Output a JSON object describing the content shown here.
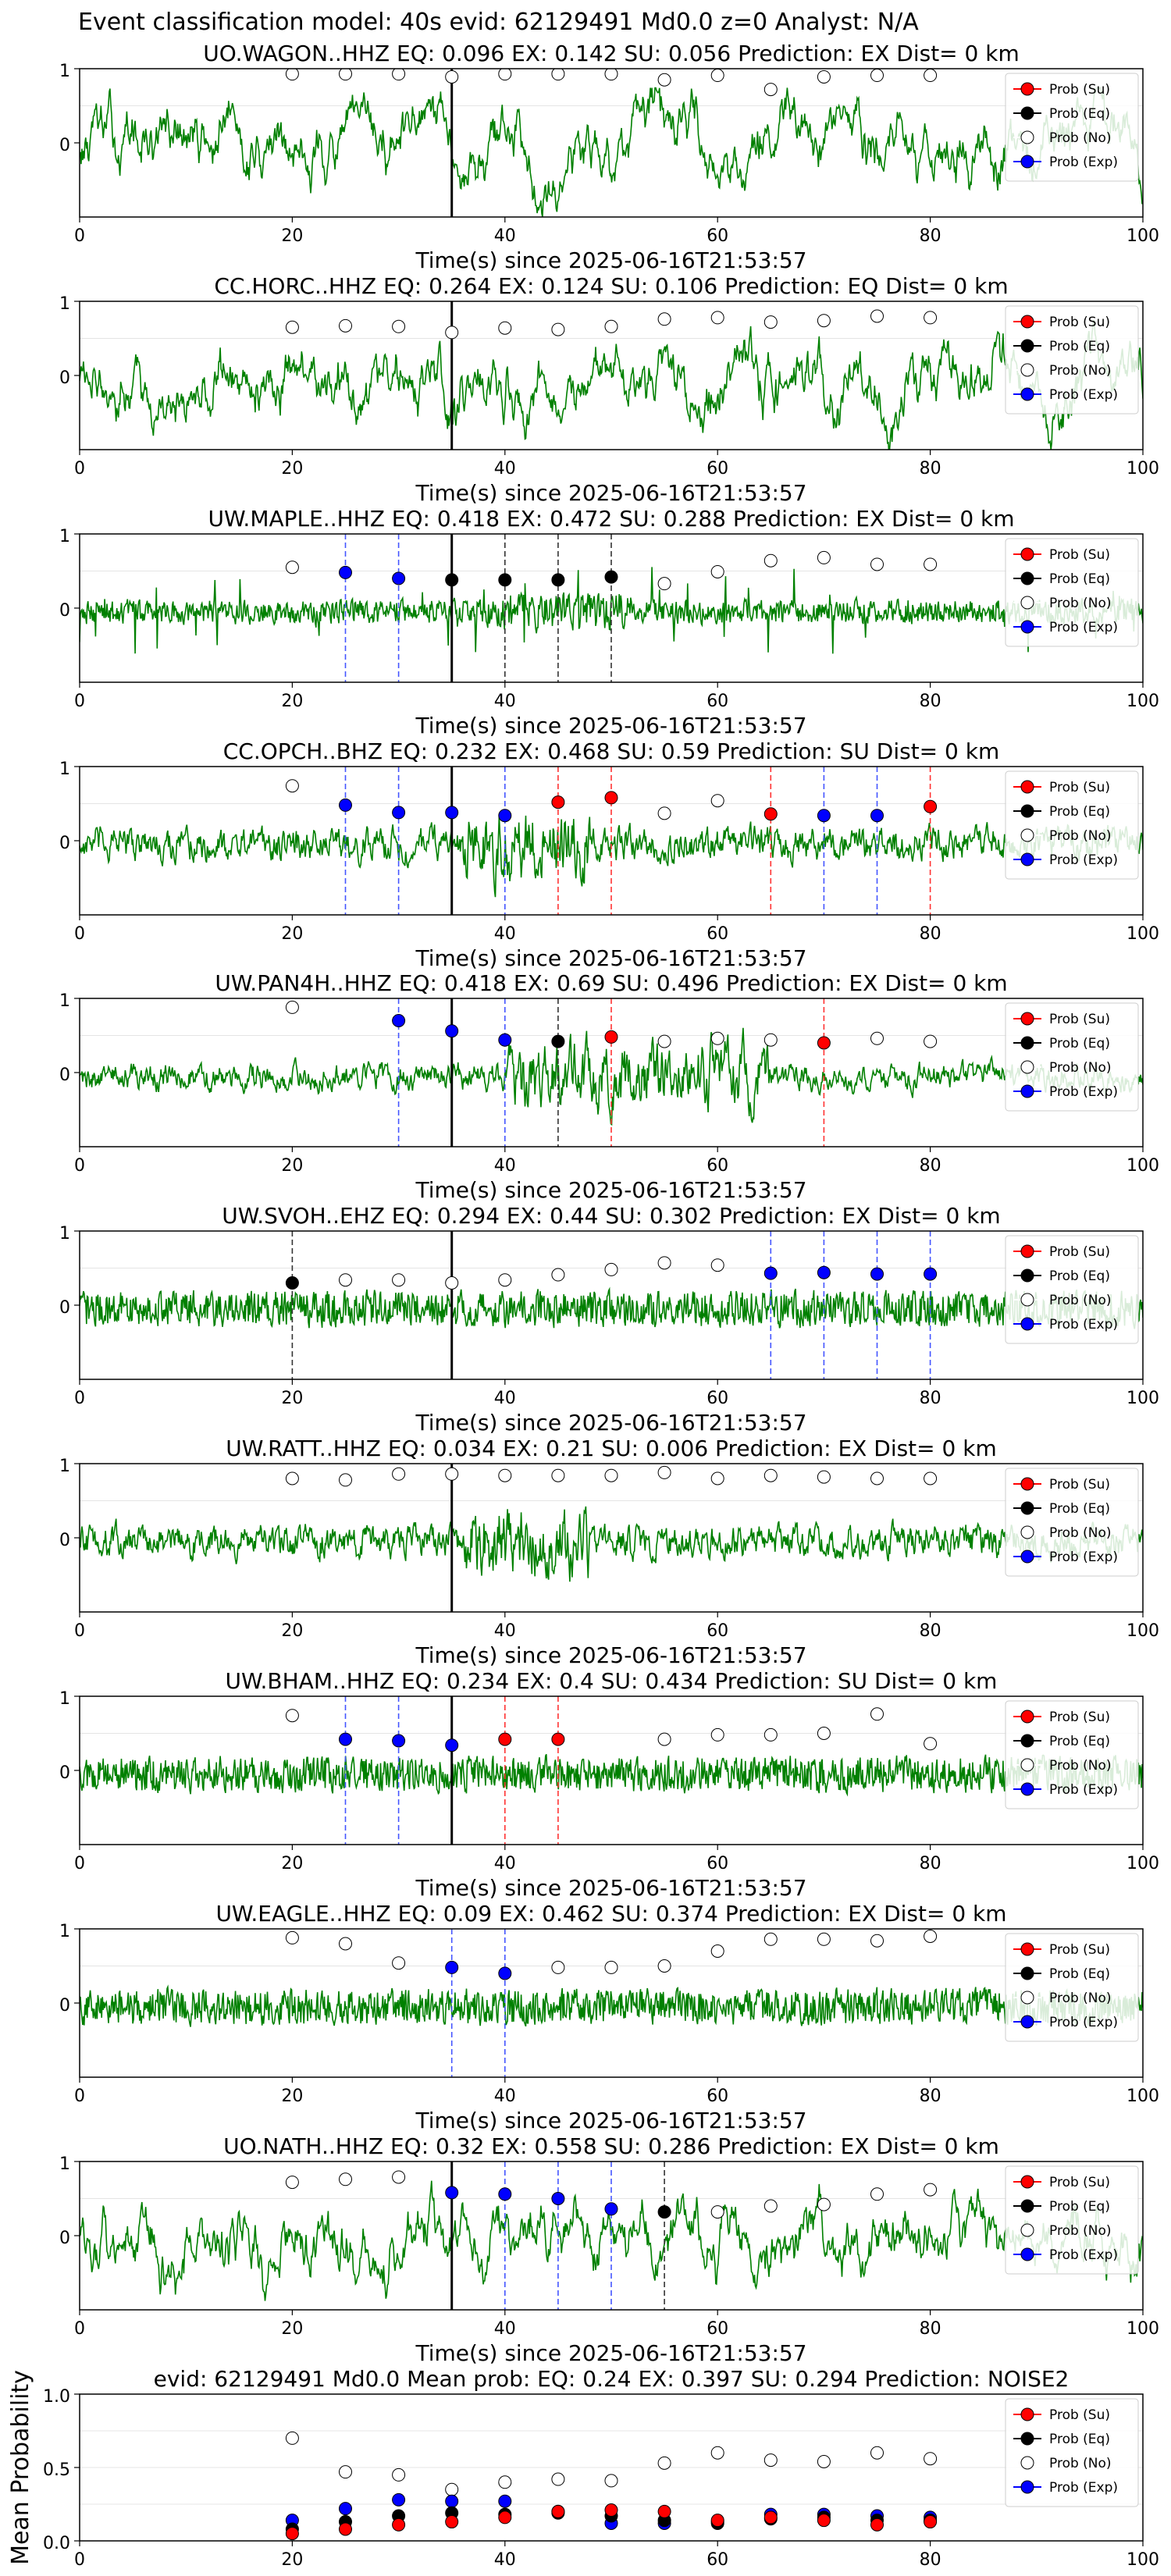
{
  "figure": {
    "suptitle": "Event classification model: 40s evid: 62129491 Md0.0 z=0 Analyst: N/A"
  },
  "legend": {
    "entries": [
      {
        "label": "Prob (Su)",
        "color": "#ff0000",
        "hollow": false
      },
      {
        "label": "Prob (Eq)",
        "color": "#000000",
        "hollow": false
      },
      {
        "label": "Prob (No)",
        "color": "#ffffff",
        "hollow": true
      },
      {
        "label": "Prob (Exp)",
        "color": "#0000ff",
        "hollow": false
      }
    ],
    "placement": "top-right"
  },
  "colors": {
    "waveform": "#008000",
    "exp_line": "#4455ff",
    "su_line": "#ff3333",
    "eq_line": "#333333",
    "arrival_line": "#000000"
  },
  "chart_data": [
    {
      "type": "line",
      "title": "UO.WAGON..HHZ   EQ: 0.096  EX: 0.142  SU: 0.056   Prediction: EX    Dist= 0 km",
      "xlabel": "Time(s) since 2025-06-16T21:53:57",
      "ylabel": "",
      "xlim": [
        0,
        100
      ],
      "ylim": [
        -1,
        1
      ],
      "xticks": [
        "0",
        "20",
        "40",
        "60",
        "80",
        "100"
      ],
      "yticks": [
        "0",
        "1"
      ],
      "arrival_time": 35,
      "waveform_style": "smooth",
      "markers": [
        {
          "x": 20,
          "y": 0.93,
          "class": "No"
        },
        {
          "x": 25,
          "y": 0.93,
          "class": "No"
        },
        {
          "x": 30,
          "y": 0.93,
          "class": "No"
        },
        {
          "x": 35,
          "y": 0.89,
          "class": "No"
        },
        {
          "x": 40,
          "y": 0.93,
          "class": "No"
        },
        {
          "x": 45,
          "y": 0.93,
          "class": "No"
        },
        {
          "x": 50,
          "y": 0.93,
          "class": "No"
        },
        {
          "x": 55,
          "y": 0.85,
          "class": "No"
        },
        {
          "x": 60,
          "y": 0.91,
          "class": "No"
        },
        {
          "x": 65,
          "y": 0.72,
          "class": "No"
        },
        {
          "x": 70,
          "y": 0.89,
          "class": "No"
        },
        {
          "x": 75,
          "y": 0.91,
          "class": "No"
        },
        {
          "x": 80,
          "y": 0.91,
          "class": "No"
        }
      ]
    },
    {
      "type": "line",
      "title": "CC.HORC..HHZ   EQ: 0.264  EX: 0.124  SU: 0.106   Prediction: EQ    Dist= 0 km",
      "xlabel": "Time(s) since 2025-06-16T21:53:57",
      "ylabel": "",
      "xlim": [
        0,
        100
      ],
      "ylim": [
        -1,
        1
      ],
      "xticks": [
        "0",
        "20",
        "40",
        "60",
        "80",
        "100"
      ],
      "yticks": [
        "0",
        "1"
      ],
      "arrival_time": 35,
      "waveform_style": "smooth",
      "markers": [
        {
          "x": 20,
          "y": 0.65,
          "class": "No"
        },
        {
          "x": 25,
          "y": 0.67,
          "class": "No"
        },
        {
          "x": 30,
          "y": 0.66,
          "class": "No"
        },
        {
          "x": 35,
          "y": 0.58,
          "class": "No"
        },
        {
          "x": 40,
          "y": 0.64,
          "class": "No"
        },
        {
          "x": 45,
          "y": 0.62,
          "class": "No"
        },
        {
          "x": 50,
          "y": 0.66,
          "class": "No"
        },
        {
          "x": 55,
          "y": 0.76,
          "class": "No"
        },
        {
          "x": 60,
          "y": 0.78,
          "class": "No"
        },
        {
          "x": 65,
          "y": 0.72,
          "class": "No"
        },
        {
          "x": 70,
          "y": 0.74,
          "class": "No"
        },
        {
          "x": 75,
          "y": 0.8,
          "class": "No"
        },
        {
          "x": 80,
          "y": 0.78,
          "class": "No"
        }
      ]
    },
    {
      "type": "line",
      "title": "UW.MAPLE..HHZ   EQ: 0.418  EX: 0.472  SU: 0.288   Prediction: EX    Dist= 0 km",
      "xlabel": "Time(s) since 2025-06-16T21:53:57",
      "ylabel": "",
      "xlim": [
        0,
        100
      ],
      "ylim": [
        -1,
        1
      ],
      "xticks": [
        "0",
        "20",
        "40",
        "60",
        "80",
        "100"
      ],
      "yticks": [
        "0",
        "1"
      ],
      "arrival_time": 35,
      "waveform_style": "spiky",
      "markers": [
        {
          "x": 20,
          "y": 0.55,
          "class": "No"
        },
        {
          "x": 25,
          "y": 0.48,
          "class": "Exp"
        },
        {
          "x": 30,
          "y": 0.4,
          "class": "Exp"
        },
        {
          "x": 35,
          "y": 0.38,
          "class": "Eq"
        },
        {
          "x": 40,
          "y": 0.38,
          "class": "Eq"
        },
        {
          "x": 45,
          "y": 0.38,
          "class": "Eq"
        },
        {
          "x": 50,
          "y": 0.42,
          "class": "Eq"
        },
        {
          "x": 55,
          "y": 0.33,
          "class": "No"
        },
        {
          "x": 60,
          "y": 0.49,
          "class": "No"
        },
        {
          "x": 65,
          "y": 0.64,
          "class": "No"
        },
        {
          "x": 70,
          "y": 0.68,
          "class": "No"
        },
        {
          "x": 75,
          "y": 0.59,
          "class": "No"
        },
        {
          "x": 80,
          "y": 0.59,
          "class": "No"
        }
      ]
    },
    {
      "type": "line",
      "title": "CC.OPCH..BHZ   EQ: 0.232  EX: 0.468  SU: 0.59   Prediction: SU    Dist= 0 km",
      "xlabel": "Time(s) since 2025-06-16T21:53:57",
      "ylabel": "",
      "xlim": [
        0,
        100
      ],
      "ylim": [
        -1,
        1
      ],
      "xticks": [
        "0",
        "20",
        "40",
        "60",
        "80",
        "100"
      ],
      "yticks": [
        "0",
        "1"
      ],
      "arrival_time": 35,
      "waveform_style": "mixed",
      "markers": [
        {
          "x": 20,
          "y": 0.74,
          "class": "No"
        },
        {
          "x": 25,
          "y": 0.48,
          "class": "Exp"
        },
        {
          "x": 30,
          "y": 0.38,
          "class": "Exp"
        },
        {
          "x": 35,
          "y": 0.38,
          "class": "Exp"
        },
        {
          "x": 40,
          "y": 0.34,
          "class": "Exp"
        },
        {
          "x": 45,
          "y": 0.52,
          "class": "Su"
        },
        {
          "x": 50,
          "y": 0.58,
          "class": "Su"
        },
        {
          "x": 55,
          "y": 0.37,
          "class": "No"
        },
        {
          "x": 60,
          "y": 0.54,
          "class": "No"
        },
        {
          "x": 65,
          "y": 0.36,
          "class": "Su"
        },
        {
          "x": 70,
          "y": 0.34,
          "class": "Exp"
        },
        {
          "x": 75,
          "y": 0.34,
          "class": "Exp"
        },
        {
          "x": 80,
          "y": 0.46,
          "class": "Su"
        }
      ]
    },
    {
      "type": "line",
      "title": "UW.PAN4H..HHZ   EQ: 0.418  EX: 0.69  SU: 0.496   Prediction: EX    Dist= 0 km",
      "xlabel": "Time(s) since 2025-06-16T21:53:57",
      "ylabel": "",
      "xlim": [
        0,
        100
      ],
      "ylim": [
        -1,
        1
      ],
      "xticks": [
        "0",
        "20",
        "40",
        "60",
        "80",
        "100"
      ],
      "yticks": [
        "0",
        "1"
      ],
      "arrival_time": 35,
      "waveform_style": "burst",
      "markers": [
        {
          "x": 20,
          "y": 0.88,
          "class": "No"
        },
        {
          "x": 30,
          "y": 0.7,
          "class": "Exp"
        },
        {
          "x": 35,
          "y": 0.56,
          "class": "Exp"
        },
        {
          "x": 40,
          "y": 0.44,
          "class": "Exp"
        },
        {
          "x": 45,
          "y": 0.42,
          "class": "Eq"
        },
        {
          "x": 50,
          "y": 0.48,
          "class": "Su"
        },
        {
          "x": 55,
          "y": 0.42,
          "class": "No"
        },
        {
          "x": 60,
          "y": 0.46,
          "class": "No"
        },
        {
          "x": 65,
          "y": 0.44,
          "class": "No"
        },
        {
          "x": 70,
          "y": 0.4,
          "class": "Su"
        },
        {
          "x": 75,
          "y": 0.46,
          "class": "No"
        },
        {
          "x": 80,
          "y": 0.42,
          "class": "No"
        }
      ]
    },
    {
      "type": "line",
      "title": "UW.SVOH..EHZ   EQ: 0.294  EX: 0.44  SU: 0.302   Prediction: EX    Dist= 0 km",
      "xlabel": "Time(s) since 2025-06-16T21:53:57",
      "ylabel": "",
      "xlim": [
        0,
        100
      ],
      "ylim": [
        -1,
        1
      ],
      "xticks": [
        "0",
        "20",
        "40",
        "60",
        "80",
        "100"
      ],
      "yticks": [
        "0",
        "1"
      ],
      "arrival_time": 35,
      "waveform_style": "dense",
      "markers": [
        {
          "x": 20,
          "y": 0.3,
          "class": "Eq"
        },
        {
          "x": 25,
          "y": 0.34,
          "class": "No"
        },
        {
          "x": 30,
          "y": 0.34,
          "class": "No"
        },
        {
          "x": 35,
          "y": 0.3,
          "class": "No"
        },
        {
          "x": 40,
          "y": 0.34,
          "class": "No"
        },
        {
          "x": 45,
          "y": 0.41,
          "class": "No"
        },
        {
          "x": 50,
          "y": 0.48,
          "class": "No"
        },
        {
          "x": 55,
          "y": 0.57,
          "class": "No"
        },
        {
          "x": 60,
          "y": 0.54,
          "class": "No"
        },
        {
          "x": 65,
          "y": 0.43,
          "class": "Exp"
        },
        {
          "x": 70,
          "y": 0.44,
          "class": "Exp"
        },
        {
          "x": 75,
          "y": 0.42,
          "class": "Exp"
        },
        {
          "x": 80,
          "y": 0.42,
          "class": "Exp"
        }
      ]
    },
    {
      "type": "line",
      "title": "UW.RATT..HHZ   EQ: 0.034  EX: 0.21  SU: 0.006   Prediction: EX    Dist= 0 km",
      "xlabel": "Time(s) since 2025-06-16T21:53:57",
      "ylabel": "",
      "xlim": [
        0,
        100
      ],
      "ylim": [
        -1,
        1
      ],
      "xticks": [
        "0",
        "20",
        "40",
        "60",
        "80",
        "100"
      ],
      "yticks": [
        "0",
        "1"
      ],
      "arrival_time": 35,
      "waveform_style": "mixed",
      "markers": [
        {
          "x": 20,
          "y": 0.8,
          "class": "No"
        },
        {
          "x": 25,
          "y": 0.78,
          "class": "No"
        },
        {
          "x": 30,
          "y": 0.86,
          "class": "No"
        },
        {
          "x": 35,
          "y": 0.86,
          "class": "No"
        },
        {
          "x": 40,
          "y": 0.84,
          "class": "No"
        },
        {
          "x": 45,
          "y": 0.84,
          "class": "No"
        },
        {
          "x": 50,
          "y": 0.84,
          "class": "No"
        },
        {
          "x": 55,
          "y": 0.88,
          "class": "No"
        },
        {
          "x": 60,
          "y": 0.8,
          "class": "No"
        },
        {
          "x": 65,
          "y": 0.84,
          "class": "No"
        },
        {
          "x": 70,
          "y": 0.82,
          "class": "No"
        },
        {
          "x": 75,
          "y": 0.8,
          "class": "No"
        },
        {
          "x": 80,
          "y": 0.8,
          "class": "No"
        }
      ]
    },
    {
      "type": "line",
      "title": "UW.BHAM..HHZ   EQ: 0.234  EX: 0.4  SU: 0.434   Prediction: SU    Dist= 0 km",
      "xlabel": "Time(s) since 2025-06-16T21:53:57",
      "ylabel": "",
      "xlim": [
        0,
        100
      ],
      "ylim": [
        -1,
        1
      ],
      "xticks": [
        "0",
        "20",
        "40",
        "60",
        "80",
        "100"
      ],
      "yticks": [
        "0",
        "1"
      ],
      "arrival_time": 35,
      "waveform_style": "dense",
      "markers": [
        {
          "x": 20,
          "y": 0.74,
          "class": "No"
        },
        {
          "x": 25,
          "y": 0.42,
          "class": "Exp"
        },
        {
          "x": 30,
          "y": 0.4,
          "class": "Exp"
        },
        {
          "x": 35,
          "y": 0.34,
          "class": "Exp"
        },
        {
          "x": 40,
          "y": 0.42,
          "class": "Su"
        },
        {
          "x": 45,
          "y": 0.42,
          "class": "Su"
        },
        {
          "x": 55,
          "y": 0.42,
          "class": "No"
        },
        {
          "x": 60,
          "y": 0.48,
          "class": "No"
        },
        {
          "x": 65,
          "y": 0.48,
          "class": "No"
        },
        {
          "x": 70,
          "y": 0.5,
          "class": "No"
        },
        {
          "x": 75,
          "y": 0.76,
          "class": "No"
        },
        {
          "x": 80,
          "y": 0.36,
          "class": "No"
        }
      ]
    },
    {
      "type": "line",
      "title": "UW.EAGLE..HHZ   EQ: 0.09  EX: 0.462  SU: 0.374   Prediction: EX    Dist= 0 km",
      "xlabel": "Time(s) since 2025-06-16T21:53:57",
      "ylabel": "",
      "xlim": [
        0,
        100
      ],
      "ylim": [
        -1,
        1
      ],
      "xticks": [
        "0",
        "20",
        "40",
        "60",
        "80",
        "100"
      ],
      "yticks": [
        "0",
        "1"
      ],
      "arrival_time": null,
      "waveform_style": "dense",
      "markers": [
        {
          "x": 20,
          "y": 0.88,
          "class": "No"
        },
        {
          "x": 25,
          "y": 0.8,
          "class": "No"
        },
        {
          "x": 30,
          "y": 0.54,
          "class": "No"
        },
        {
          "x": 35,
          "y": 0.48,
          "class": "Exp"
        },
        {
          "x": 40,
          "y": 0.4,
          "class": "Exp"
        },
        {
          "x": 45,
          "y": 0.48,
          "class": "No"
        },
        {
          "x": 50,
          "y": 0.48,
          "class": "No"
        },
        {
          "x": 55,
          "y": 0.5,
          "class": "No"
        },
        {
          "x": 60,
          "y": 0.7,
          "class": "No"
        },
        {
          "x": 65,
          "y": 0.86,
          "class": "No"
        },
        {
          "x": 70,
          "y": 0.86,
          "class": "No"
        },
        {
          "x": 75,
          "y": 0.84,
          "class": "No"
        },
        {
          "x": 80,
          "y": 0.9,
          "class": "No"
        }
      ]
    },
    {
      "type": "line",
      "title": "UO.NATH..HHZ   EQ: 0.32  EX: 0.558  SU: 0.286   Prediction: EX    Dist= 0 km",
      "xlabel": "Time(s) since 2025-06-16T21:53:57",
      "ylabel": "",
      "xlim": [
        0,
        100
      ],
      "ylim": [
        -1,
        1
      ],
      "xticks": [
        "0",
        "20",
        "40",
        "60",
        "80",
        "100"
      ],
      "yticks": [
        "0",
        "1"
      ],
      "arrival_time": 35,
      "waveform_style": "smooth",
      "markers": [
        {
          "x": 20,
          "y": 0.72,
          "class": "No"
        },
        {
          "x": 25,
          "y": 0.76,
          "class": "No"
        },
        {
          "x": 30,
          "y": 0.79,
          "class": "No"
        },
        {
          "x": 35,
          "y": 0.58,
          "class": "Exp"
        },
        {
          "x": 40,
          "y": 0.56,
          "class": "Exp"
        },
        {
          "x": 45,
          "y": 0.5,
          "class": "Exp"
        },
        {
          "x": 50,
          "y": 0.36,
          "class": "Exp"
        },
        {
          "x": 55,
          "y": 0.32,
          "class": "Eq"
        },
        {
          "x": 60,
          "y": 0.32,
          "class": "No"
        },
        {
          "x": 65,
          "y": 0.4,
          "class": "No"
        },
        {
          "x": 70,
          "y": 0.42,
          "class": "No"
        },
        {
          "x": 75,
          "y": 0.56,
          "class": "No"
        },
        {
          "x": 80,
          "y": 0.62,
          "class": "No"
        }
      ]
    },
    {
      "type": "scatter",
      "title": "evid: 62129491  Md0.0   Mean prob:   EQ: 0.24  EX: 0.397  SU: 0.294   Prediction: NOISE2",
      "xlabel": "",
      "ylabel": "Mean Probability",
      "xlim": [
        0,
        100
      ],
      "ylim": [
        0,
        1
      ],
      "xticks": [
        "0",
        "20",
        "40",
        "60",
        "80",
        "100"
      ],
      "yticks": [
        "0.0",
        "0.5",
        "1.0"
      ],
      "arrival_time": null,
      "x": [
        20,
        25,
        30,
        35,
        40,
        45,
        50,
        55,
        60,
        65,
        70,
        75,
        80
      ],
      "series": [
        {
          "name": "Prob (No)",
          "class": "No",
          "values": [
            0.7,
            0.47,
            0.45,
            0.35,
            0.4,
            0.42,
            0.41,
            0.53,
            0.6,
            0.55,
            0.54,
            0.6,
            0.56
          ]
        },
        {
          "name": "Prob (Exp)",
          "class": "Exp",
          "values": [
            0.14,
            0.22,
            0.28,
            0.27,
            0.27,
            0.2,
            0.12,
            0.12,
            0.13,
            0.18,
            0.18,
            0.17,
            0.16
          ]
        },
        {
          "name": "Prob (Eq)",
          "class": "Eq",
          "values": [
            0.08,
            0.13,
            0.17,
            0.19,
            0.18,
            0.19,
            0.17,
            0.14,
            0.12,
            0.15,
            0.16,
            0.14,
            0.14
          ]
        },
        {
          "name": "Prob (Su)",
          "class": "Su",
          "values": [
            0.05,
            0.08,
            0.11,
            0.13,
            0.16,
            0.2,
            0.21,
            0.2,
            0.14,
            0.16,
            0.14,
            0.11,
            0.13
          ]
        }
      ]
    }
  ]
}
